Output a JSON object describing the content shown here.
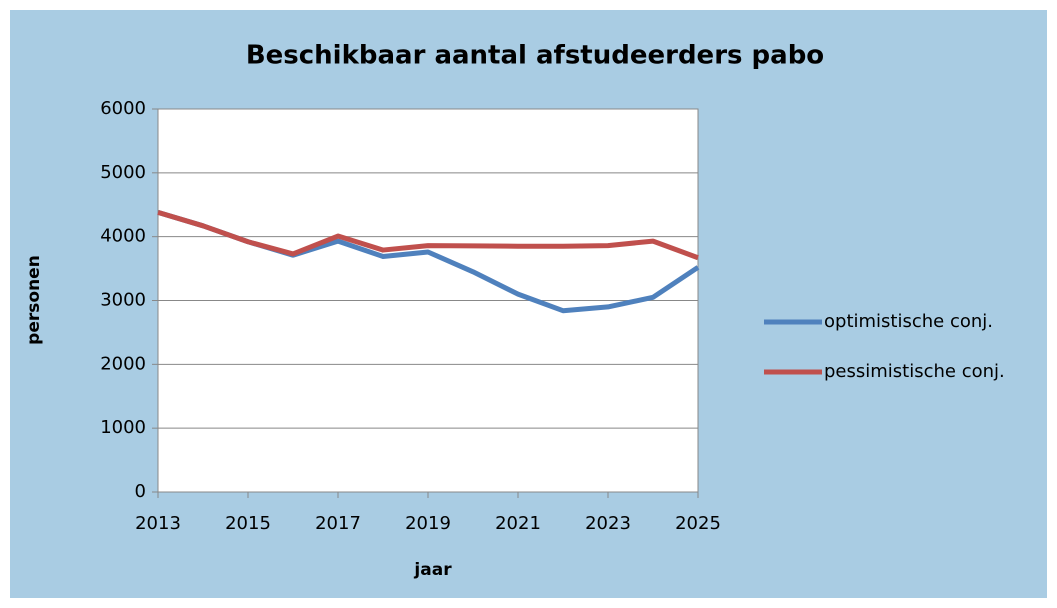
{
  "chart_data": {
    "type": "line",
    "title": "Beschikbaar aantal afstudeerders pabo",
    "x_label": "jaar",
    "y_label": "personen",
    "x": [
      2013,
      2014,
      2015,
      2016,
      2017,
      2018,
      2019,
      2020,
      2021,
      2022,
      2023,
      2024,
      2025
    ],
    "series": [
      {
        "name": "optimistische conj.",
        "color": "#4f81bd",
        "values": [
          4380,
          4170,
          3920,
          3710,
          3930,
          3690,
          3760,
          3450,
          3100,
          2840,
          2900,
          3050,
          3520
        ]
      },
      {
        "name": "pessimistische conj.",
        "color": "#c0504d",
        "values": [
          4380,
          4170,
          3920,
          3730,
          4010,
          3790,
          3860,
          3855,
          3850,
          3850,
          3860,
          3930,
          3670
        ]
      }
    ],
    "xlim": [
      2013,
      2025
    ],
    "xticks": [
      2013,
      2015,
      2017,
      2019,
      2021,
      2023,
      2025
    ],
    "ylim": [
      0,
      6000
    ],
    "yticks": [
      0,
      1000,
      2000,
      3000,
      4000,
      5000,
      6000
    ],
    "grid": true,
    "legend": "right"
  }
}
